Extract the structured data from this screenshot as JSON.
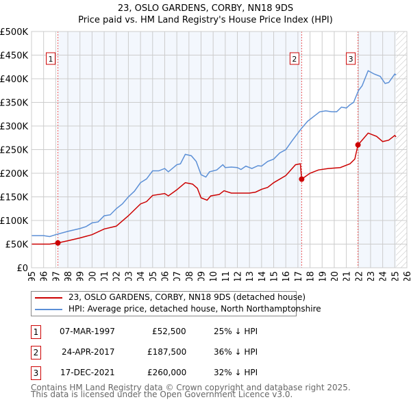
{
  "chart_data": {
    "type": "line",
    "title": "23, OSLO GARDENS, CORBY, NN18 9DS",
    "subtitle": "Price paid vs. HM Land Registry's House Price Index (HPI)",
    "xlim": [
      1995,
      2026
    ],
    "ylim": [
      0,
      500000
    ],
    "yticks": [
      {
        "v": 0,
        "l": "£0"
      },
      {
        "v": 50000,
        "l": "£50K"
      },
      {
        "v": 100000,
        "l": "£100K"
      },
      {
        "v": 150000,
        "l": "£150K"
      },
      {
        "v": 200000,
        "l": "£200K"
      },
      {
        "v": 250000,
        "l": "£250K"
      },
      {
        "v": 300000,
        "l": "£300K"
      },
      {
        "v": 350000,
        "l": "£350K"
      },
      {
        "v": 400000,
        "l": "£400K"
      },
      {
        "v": 450000,
        "l": "£450K"
      },
      {
        "v": 500000,
        "l": "£500K"
      }
    ],
    "xticks": [
      "1995",
      "1996",
      "1997",
      "1998",
      "1999",
      "2000",
      "2001",
      "2002",
      "2003",
      "2004",
      "2005",
      "2006",
      "2007",
      "2008",
      "2009",
      "2010",
      "2011",
      "2012",
      "2013",
      "2014",
      "2015",
      "2016",
      "2017",
      "2018",
      "2019",
      "2020",
      "2021",
      "2022",
      "2023",
      "2024",
      "2025",
      "2026"
    ],
    "grid": true,
    "data_end": 2025.1,
    "series": [
      {
        "name": "23, OSLO GARDENS, CORBY, NN18 9DS (detached house)",
        "color": "#cc0000",
        "x": [
          1995,
          1996.5,
          1997.18,
          1998,
          1999,
          2000,
          2001,
          2002,
          2003,
          2004,
          2004.5,
          2005,
          2006,
          2006.3,
          2007,
          2007.7,
          2008.3,
          2008.7,
          2009,
          2009.5,
          2009.8,
          2010.5,
          2010.9,
          2011.5,
          2012.3,
          2013,
          2013.5,
          2014,
          2014.5,
          2015,
          2016,
          2016.8,
          2017.2,
          2017.31,
          2018,
          2018.7,
          2019.5,
          2020.5,
          2021.3,
          2021.7,
          2021.96,
          2022.3,
          2022.8,
          2023.5,
          2024,
          2024.5,
          2025,
          2025.1
        ],
        "y": [
          50000,
          50000,
          52500,
          57000,
          63000,
          70000,
          82000,
          88000,
          110000,
          135000,
          140000,
          153000,
          157000,
          152000,
          165000,
          180000,
          177000,
          168000,
          148000,
          143000,
          152000,
          155000,
          163000,
          158000,
          158000,
          158000,
          160000,
          166000,
          170000,
          180000,
          195000,
          218000,
          220000,
          187500,
          200000,
          207000,
          210000,
          212000,
          220000,
          230000,
          260000,
          270000,
          285000,
          278000,
          267000,
          270000,
          280000,
          277000
        ]
      },
      {
        "name": "HPI: Average price, detached house, North Northamptonshire",
        "color": "#5b8fd6",
        "x": [
          1995,
          1996,
          1996.5,
          1997,
          1998,
          1999,
          1999.5,
          2000,
          2000.5,
          2001,
          2001.5,
          2002,
          2002.5,
          2003,
          2003.5,
          2004,
          2004.5,
          2005,
          2005.5,
          2006,
          2006.3,
          2007,
          2007.3,
          2007.7,
          2008.2,
          2008.6,
          2009,
          2009.4,
          2009.7,
          2010.3,
          2010.8,
          2011,
          2011.5,
          2012,
          2012.3,
          2012.7,
          2013.2,
          2013.7,
          2014,
          2014.5,
          2015,
          2015.5,
          2016,
          2016.5,
          2017,
          2017.3,
          2017.8,
          2018.3,
          2018.8,
          2019.3,
          2019.8,
          2020.2,
          2020.6,
          2021,
          2021.3,
          2021.6,
          2022,
          2022.3,
          2022.8,
          2023.3,
          2023.8,
          2024.2,
          2024.5,
          2025,
          2025.1
        ],
        "y": [
          68000,
          68000,
          66000,
          70000,
          77000,
          83000,
          87000,
          95000,
          97000,
          110000,
          112000,
          125000,
          135000,
          150000,
          162000,
          180000,
          188000,
          205000,
          205000,
          210000,
          203000,
          218000,
          220000,
          240000,
          237000,
          225000,
          197000,
          192000,
          203000,
          207000,
          218000,
          212000,
          213000,
          212000,
          208000,
          215000,
          210000,
          216000,
          215000,
          225000,
          230000,
          243000,
          250000,
          268000,
          285000,
          295000,
          310000,
          320000,
          330000,
          332000,
          330000,
          330000,
          340000,
          338000,
          345000,
          350000,
          375000,
          385000,
          417000,
          410000,
          405000,
          390000,
          392000,
          410000,
          408000
        ]
      }
    ],
    "sales": [
      {
        "n": "1",
        "x": 1997.18,
        "y": 52500
      },
      {
        "n": "2",
        "x": 2017.31,
        "y": 187500
      },
      {
        "n": "3",
        "x": 2021.96,
        "y": 260000
      }
    ]
  },
  "legend": [
    "23, OSLO GARDENS, CORBY, NN18 9DS (detached house)",
    "HPI: Average price, detached house, North Northamptonshire"
  ],
  "transactions": [
    {
      "n": "1",
      "date": "07-MAR-1997",
      "price": "£52,500",
      "hpi": "25% ↓ HPI"
    },
    {
      "n": "2",
      "date": "24-APR-2017",
      "price": "£187,500",
      "hpi": "36% ↓ HPI"
    },
    {
      "n": "3",
      "date": "17-DEC-2021",
      "price": "£260,000",
      "hpi": "32% ↓ HPI"
    }
  ],
  "footer": [
    "Contains HM Land Registry data © Crown copyright and database right 2025.",
    "This data is licensed under the Open Government Licence v3.0."
  ]
}
